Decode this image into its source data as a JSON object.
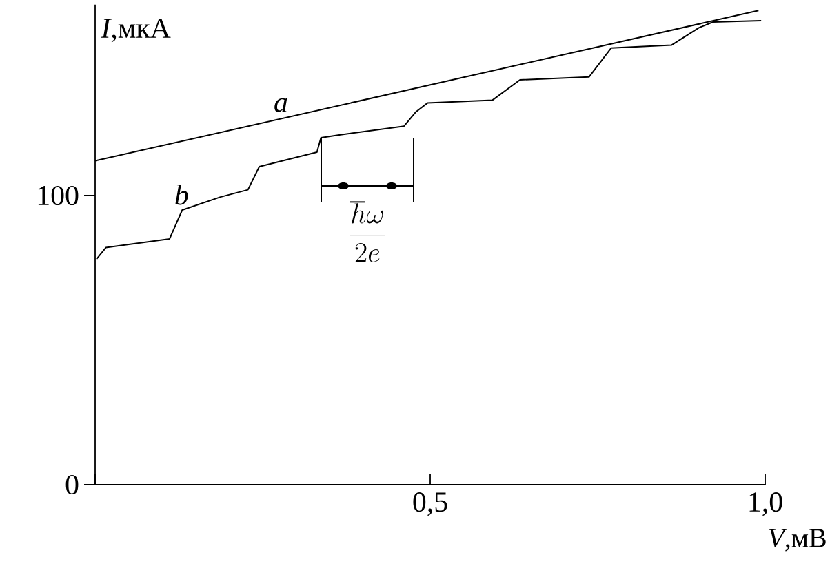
{
  "chart_data": {
    "type": "line",
    "xlabel": "*V*,мВ",
    "ylabel": "*I*,мкА",
    "xlim": [
      0,
      1.0
    ],
    "ylim": [
      0,
      166
    ],
    "xticks": [
      {
        "value": 0,
        "label": null
      },
      {
        "value": 0.5,
        "label": "0,5"
      },
      {
        "value": 1.0,
        "label": "1,0"
      }
    ],
    "yticks": [
      0,
      100
    ],
    "series": [
      {
        "name": "a",
        "color": "#000000",
        "x": [
          0,
          0.99
        ],
        "values": [
          112,
          164
        ]
      },
      {
        "name": "b",
        "color": "#000000",
        "x": [
          0.002,
          0.016,
          0.111,
          0.13,
          0.187,
          0.228,
          0.245,
          0.331,
          0.337,
          0.366,
          0.461,
          0.479,
          0.496,
          0.593,
          0.634,
          0.737,
          0.77,
          0.86,
          0.901,
          0.922,
          0.994
        ],
        "values": [
          78,
          82,
          85,
          95,
          99.5,
          102,
          110,
          115,
          120,
          121,
          124,
          129,
          132,
          133,
          140,
          141,
          151,
          152,
          158,
          160,
          160.5
        ]
      }
    ],
    "annotations": [
      "\\frac{\\hbar\\omega}{2e}"
    ],
    "grid": false,
    "legend": false,
    "marker": "none",
    "line_style": "solid"
  }
}
